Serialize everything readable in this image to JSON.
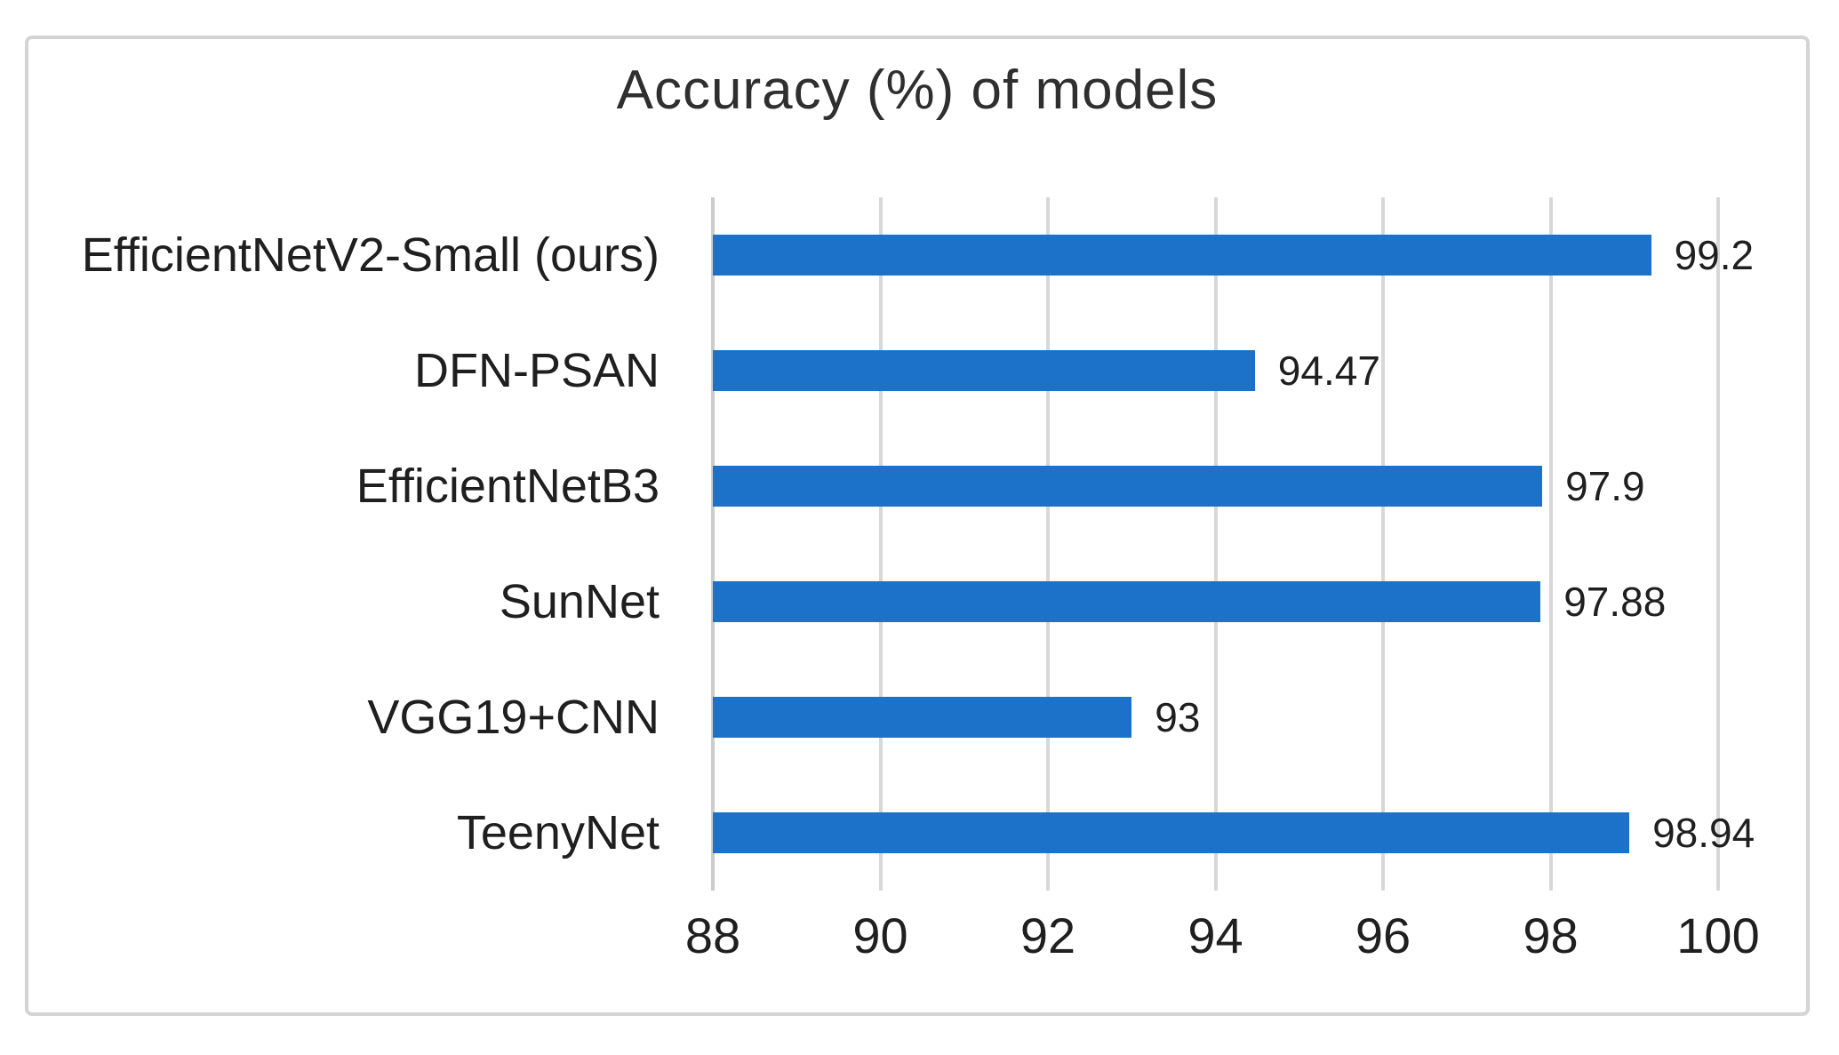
{
  "chart_data": {
    "type": "bar",
    "orientation": "horizontal",
    "title": "Accuracy (%) of models",
    "categories": [
      "EfficientNetV2-Small (ours)",
      "DFN-PSAN",
      "EfficientNetB3",
      "SunNet",
      "VGG19+CNN",
      "TeenyNet"
    ],
    "values": [
      99.2,
      94.47,
      97.9,
      97.88,
      93,
      98.94
    ],
    "value_labels": [
      "99.2",
      "94.47",
      "97.9",
      "97.88",
      "93",
      "98.94"
    ],
    "xlabel": "",
    "ylabel": "",
    "xlim": [
      88,
      100
    ],
    "x_ticks": [
      88,
      90,
      92,
      94,
      96,
      98,
      100
    ],
    "grid": true,
    "legend": "none",
    "bar_color": "#1b72c8",
    "gridline_color": "#d8d8d8",
    "axis_line_color": "#cccccc",
    "frame_border_color": "#d4d4d4",
    "text_color": "#1f1f1f"
  }
}
